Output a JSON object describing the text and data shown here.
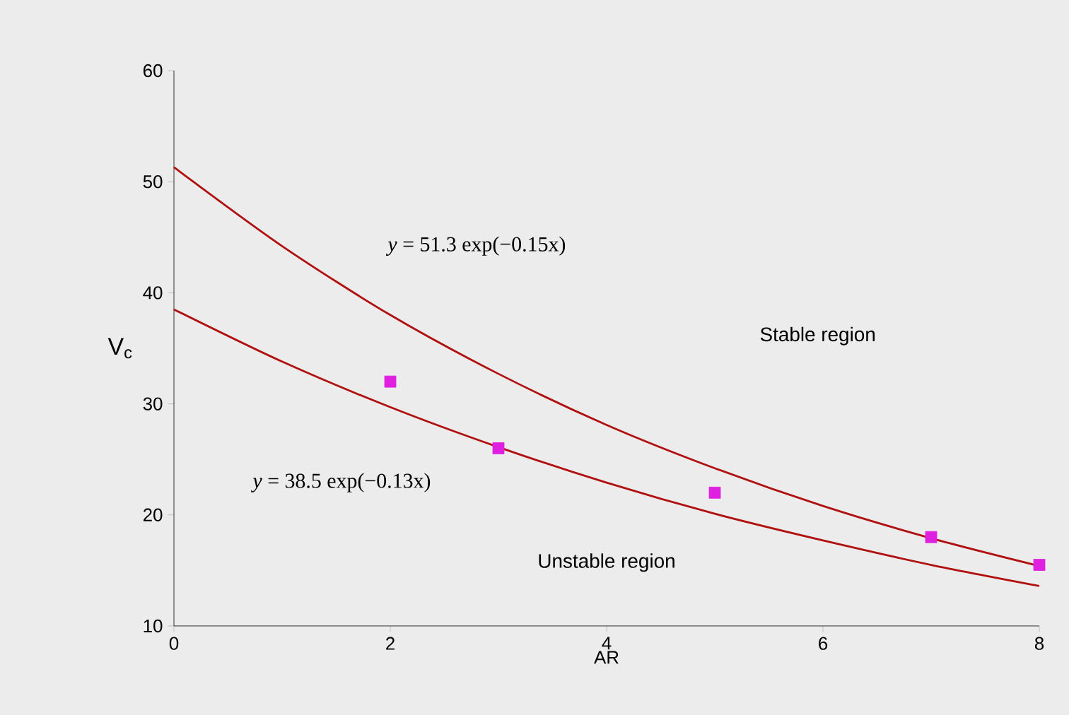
{
  "chart_data": {
    "type": "scatter",
    "xlabel": "AR",
    "ylabel": "V$_{c}$",
    "xlim": [
      0,
      8
    ],
    "ylim": [
      10,
      60
    ],
    "xticks": [
      0,
      2,
      4,
      6,
      8
    ],
    "yticks": [
      10,
      20,
      30,
      40,
      50,
      60
    ],
    "grid": false,
    "series": [
      {
        "type": "line",
        "color": "#b01010",
        "marker": "none",
        "line_style": "solid",
        "x": [
          0,
          1,
          2,
          3,
          4,
          5,
          6,
          7,
          8
        ],
        "values": [
          51.3,
          44.2,
          38.0,
          32.7,
          28.1,
          24.2,
          20.8,
          17.9,
          15.4
        ]
      },
      {
        "type": "line",
        "color": "#b01010",
        "marker": "none",
        "line_style": "solid",
        "x": [
          0,
          1,
          2,
          3,
          4,
          5,
          6,
          7,
          8
        ],
        "values": [
          38.5,
          33.8,
          29.7,
          26.1,
          22.9,
          20.1,
          17.7,
          15.5,
          13.6
        ]
      },
      {
        "color": "#e020e0",
        "marker": "square",
        "x": [
          2,
          3,
          5,
          7,
          8
        ],
        "values": [
          32,
          26,
          22,
          18,
          15.5
        ]
      }
    ],
    "annotations": [
      "*y* = 51.3 exp(−0.15x)",
      "*y* = 38.5 exp(−0.13x)",
      "Stable region",
      "Unstable region"
    ]
  }
}
